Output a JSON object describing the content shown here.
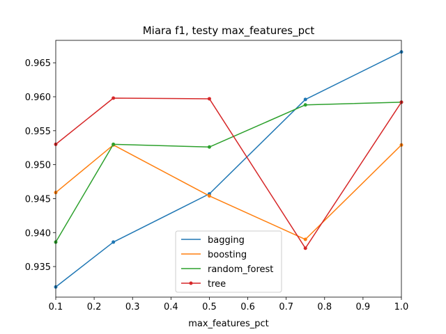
{
  "chart_data": {
    "type": "line",
    "title": "Miara f1, testy max_features_pct",
    "xlabel": "max_features_pct",
    "ylabel": "",
    "xlim": [
      0.1,
      1.0
    ],
    "ylim": [
      0.9305,
      0.9683
    ],
    "x_ticks": [
      "0.1",
      "0.2",
      "0.3",
      "0.4",
      "0.5",
      "0.6",
      "0.7",
      "0.8",
      "0.9",
      "1.0"
    ],
    "y_ticks": [
      "0.935",
      "0.940",
      "0.945",
      "0.950",
      "0.955",
      "0.960",
      "0.965"
    ],
    "grid": false,
    "legend_position": "lower-center",
    "x": [
      0.1,
      0.25,
      0.5,
      0.75,
      1.0
    ],
    "series": [
      {
        "name": "bagging",
        "color": "#1f77b4",
        "values": [
          0.932,
          0.9386,
          0.9457,
          0.9596,
          0.9666
        ]
      },
      {
        "name": "boosting",
        "color": "#ff7f0e",
        "values": [
          0.9459,
          0.9529,
          0.9454,
          0.939,
          0.9529
        ]
      },
      {
        "name": "random_forest",
        "color": "#2ca02c",
        "values": [
          0.9386,
          0.953,
          0.9526,
          0.9588,
          0.9592
        ]
      },
      {
        "name": "tree",
        "color": "#d62728",
        "values": [
          0.953,
          0.9598,
          0.9597,
          0.9377,
          0.9592
        ]
      }
    ]
  }
}
